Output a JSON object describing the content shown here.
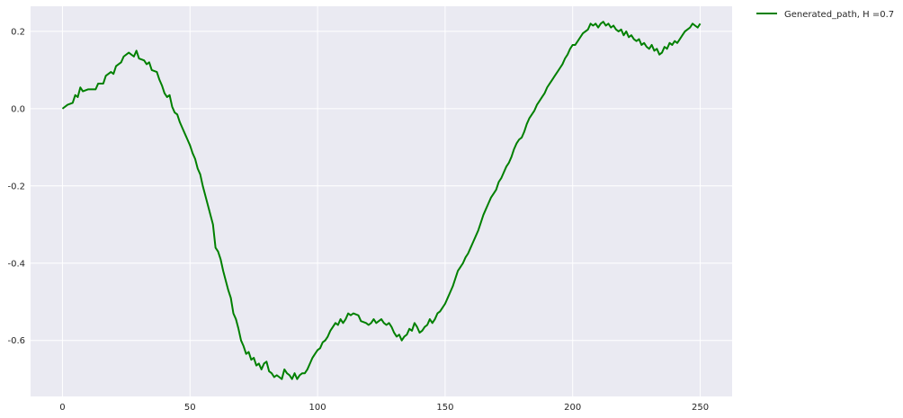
{
  "chart_data": {
    "type": "line",
    "title": "",
    "xlabel": "",
    "ylabel": "",
    "xlim": [
      -12.5,
      262.5
    ],
    "ylim": [
      -0.745,
      0.265
    ],
    "xticks": [
      0,
      50,
      100,
      150,
      200,
      250
    ],
    "yticks": [
      -0.6,
      -0.4,
      -0.2,
      0.0,
      0.2
    ],
    "ytick_labels": [
      "-0.6",
      "-0.4",
      "-0.2",
      "0.0",
      "0.2"
    ],
    "grid": true,
    "legend_position": "outside-top-right",
    "series": [
      {
        "name": "Generated_path, H =0.7",
        "color": "#008000",
        "points": [
          [
            0,
            0.0
          ],
          [
            2,
            0.01
          ],
          [
            4,
            0.015
          ],
          [
            5,
            0.035
          ],
          [
            6,
            0.03
          ],
          [
            7,
            0.055
          ],
          [
            8,
            0.045
          ],
          [
            10,
            0.05
          ],
          [
            12,
            0.05
          ],
          [
            13,
            0.05
          ],
          [
            14,
            0.065
          ],
          [
            16,
            0.065
          ],
          [
            17,
            0.085
          ],
          [
            19,
            0.095
          ],
          [
            20,
            0.09
          ],
          [
            21,
            0.11
          ],
          [
            23,
            0.12
          ],
          [
            24,
            0.135
          ],
          [
            26,
            0.145
          ],
          [
            28,
            0.135
          ],
          [
            29,
            0.15
          ],
          [
            30,
            0.13
          ],
          [
            32,
            0.125
          ],
          [
            33,
            0.115
          ],
          [
            34,
            0.12
          ],
          [
            35,
            0.1
          ],
          [
            37,
            0.095
          ],
          [
            38,
            0.075
          ],
          [
            39,
            0.06
          ],
          [
            40,
            0.04
          ],
          [
            41,
            0.03
          ],
          [
            42,
            0.035
          ],
          [
            43,
            0.005
          ],
          [
            44,
            -0.01
          ],
          [
            45,
            -0.015
          ],
          [
            46,
            -0.035
          ],
          [
            47,
            -0.05
          ],
          [
            48,
            -0.065
          ],
          [
            49,
            -0.08
          ],
          [
            50,
            -0.095
          ],
          [
            51,
            -0.115
          ],
          [
            52,
            -0.13
          ],
          [
            53,
            -0.155
          ],
          [
            54,
            -0.17
          ],
          [
            55,
            -0.2
          ],
          [
            56,
            -0.225
          ],
          [
            57,
            -0.25
          ],
          [
            58,
            -0.275
          ],
          [
            59,
            -0.3
          ],
          [
            60,
            -0.36
          ],
          [
            61,
            -0.37
          ],
          [
            62,
            -0.39
          ],
          [
            63,
            -0.42
          ],
          [
            64,
            -0.445
          ],
          [
            65,
            -0.47
          ],
          [
            66,
            -0.49
          ],
          [
            67,
            -0.53
          ],
          [
            68,
            -0.545
          ],
          [
            69,
            -0.57
          ],
          [
            70,
            -0.6
          ],
          [
            71,
            -0.615
          ],
          [
            72,
            -0.635
          ],
          [
            73,
            -0.63
          ],
          [
            74,
            -0.65
          ],
          [
            75,
            -0.645
          ],
          [
            76,
            -0.665
          ],
          [
            77,
            -0.66
          ],
          [
            78,
            -0.675
          ],
          [
            79,
            -0.66
          ],
          [
            80,
            -0.655
          ],
          [
            81,
            -0.68
          ],
          [
            82,
            -0.685
          ],
          [
            83,
            -0.695
          ],
          [
            84,
            -0.69
          ],
          [
            85,
            -0.695
          ],
          [
            86,
            -0.7
          ],
          [
            87,
            -0.675
          ],
          [
            88,
            -0.685
          ],
          [
            89,
            -0.69
          ],
          [
            90,
            -0.7
          ],
          [
            91,
            -0.685
          ],
          [
            92,
            -0.7
          ],
          [
            93,
            -0.69
          ],
          [
            94,
            -0.685
          ],
          [
            95,
            -0.685
          ],
          [
            96,
            -0.675
          ],
          [
            97,
            -0.66
          ],
          [
            98,
            -0.645
          ],
          [
            99,
            -0.635
          ],
          [
            100,
            -0.625
          ],
          [
            101,
            -0.62
          ],
          [
            102,
            -0.605
          ],
          [
            103,
            -0.6
          ],
          [
            104,
            -0.59
          ],
          [
            105,
            -0.575
          ],
          [
            106,
            -0.565
          ],
          [
            107,
            -0.555
          ],
          [
            108,
            -0.56
          ],
          [
            109,
            -0.545
          ],
          [
            110,
            -0.555
          ],
          [
            111,
            -0.545
          ],
          [
            112,
            -0.53
          ],
          [
            113,
            -0.535
          ],
          [
            114,
            -0.53
          ],
          [
            116,
            -0.535
          ],
          [
            117,
            -0.55
          ],
          [
            119,
            -0.555
          ],
          [
            120,
            -0.56
          ],
          [
            121,
            -0.555
          ],
          [
            122,
            -0.545
          ],
          [
            123,
            -0.555
          ],
          [
            124,
            -0.55
          ],
          [
            125,
            -0.545
          ],
          [
            126,
            -0.555
          ],
          [
            127,
            -0.56
          ],
          [
            128,
            -0.555
          ],
          [
            129,
            -0.565
          ],
          [
            130,
            -0.58
          ],
          [
            131,
            -0.59
          ],
          [
            132,
            -0.585
          ],
          [
            133,
            -0.6
          ],
          [
            134,
            -0.59
          ],
          [
            135,
            -0.585
          ],
          [
            136,
            -0.57
          ],
          [
            137,
            -0.575
          ],
          [
            138,
            -0.555
          ],
          [
            139,
            -0.565
          ],
          [
            140,
            -0.58
          ],
          [
            141,
            -0.575
          ],
          [
            142,
            -0.565
          ],
          [
            143,
            -0.56
          ],
          [
            144,
            -0.545
          ],
          [
            145,
            -0.555
          ],
          [
            146,
            -0.545
          ],
          [
            147,
            -0.53
          ],
          [
            148,
            -0.525
          ],
          [
            149,
            -0.515
          ],
          [
            150,
            -0.505
          ],
          [
            151,
            -0.49
          ],
          [
            152,
            -0.475
          ],
          [
            153,
            -0.46
          ],
          [
            154,
            -0.44
          ],
          [
            155,
            -0.42
          ],
          [
            156,
            -0.41
          ],
          [
            157,
            -0.4
          ],
          [
            158,
            -0.385
          ],
          [
            159,
            -0.375
          ],
          [
            160,
            -0.36
          ],
          [
            161,
            -0.345
          ],
          [
            162,
            -0.33
          ],
          [
            163,
            -0.315
          ],
          [
            164,
            -0.295
          ],
          [
            165,
            -0.275
          ],
          [
            166,
            -0.26
          ],
          [
            167,
            -0.245
          ],
          [
            168,
            -0.23
          ],
          [
            169,
            -0.22
          ],
          [
            170,
            -0.21
          ],
          [
            171,
            -0.19
          ],
          [
            172,
            -0.18
          ],
          [
            173,
            -0.165
          ],
          [
            174,
            -0.15
          ],
          [
            175,
            -0.14
          ],
          [
            176,
            -0.125
          ],
          [
            177,
            -0.105
          ],
          [
            178,
            -0.09
          ],
          [
            179,
            -0.08
          ],
          [
            180,
            -0.075
          ],
          [
            181,
            -0.06
          ],
          [
            182,
            -0.04
          ],
          [
            183,
            -0.025
          ],
          [
            184,
            -0.015
          ],
          [
            185,
            -0.005
          ],
          [
            186,
            0.01
          ],
          [
            187,
            0.02
          ],
          [
            188,
            0.03
          ],
          [
            189,
            0.04
          ],
          [
            190,
            0.055
          ],
          [
            191,
            0.065
          ],
          [
            192,
            0.075
          ],
          [
            193,
            0.085
          ],
          [
            194,
            0.095
          ],
          [
            195,
            0.105
          ],
          [
            196,
            0.115
          ],
          [
            197,
            0.13
          ],
          [
            198,
            0.14
          ],
          [
            199,
            0.155
          ],
          [
            200,
            0.165
          ],
          [
            201,
            0.165
          ],
          [
            202,
            0.175
          ],
          [
            203,
            0.185
          ],
          [
            204,
            0.195
          ],
          [
            205,
            0.2
          ],
          [
            206,
            0.205
          ],
          [
            207,
            0.22
          ],
          [
            208,
            0.215
          ],
          [
            209,
            0.22
          ],
          [
            210,
            0.21
          ],
          [
            211,
            0.22
          ],
          [
            212,
            0.225
          ],
          [
            213,
            0.215
          ],
          [
            214,
            0.22
          ],
          [
            215,
            0.21
          ],
          [
            216,
            0.215
          ],
          [
            217,
            0.205
          ],
          [
            218,
            0.2
          ],
          [
            219,
            0.205
          ],
          [
            220,
            0.19
          ],
          [
            221,
            0.2
          ],
          [
            222,
            0.185
          ],
          [
            223,
            0.19
          ],
          [
            224,
            0.18
          ],
          [
            225,
            0.175
          ],
          [
            226,
            0.18
          ],
          [
            227,
            0.165
          ],
          [
            228,
            0.17
          ],
          [
            229,
            0.16
          ],
          [
            230,
            0.155
          ],
          [
            231,
            0.165
          ],
          [
            232,
            0.15
          ],
          [
            233,
            0.155
          ],
          [
            234,
            0.14
          ],
          [
            235,
            0.145
          ],
          [
            236,
            0.16
          ],
          [
            237,
            0.155
          ],
          [
            238,
            0.17
          ],
          [
            239,
            0.165
          ],
          [
            240,
            0.175
          ],
          [
            241,
            0.17
          ],
          [
            242,
            0.18
          ],
          [
            243,
            0.19
          ],
          [
            244,
            0.2
          ],
          [
            245,
            0.205
          ],
          [
            246,
            0.21
          ],
          [
            247,
            0.22
          ],
          [
            248,
            0.215
          ],
          [
            249,
            0.21
          ],
          [
            250,
            0.22
          ]
        ]
      }
    ]
  }
}
